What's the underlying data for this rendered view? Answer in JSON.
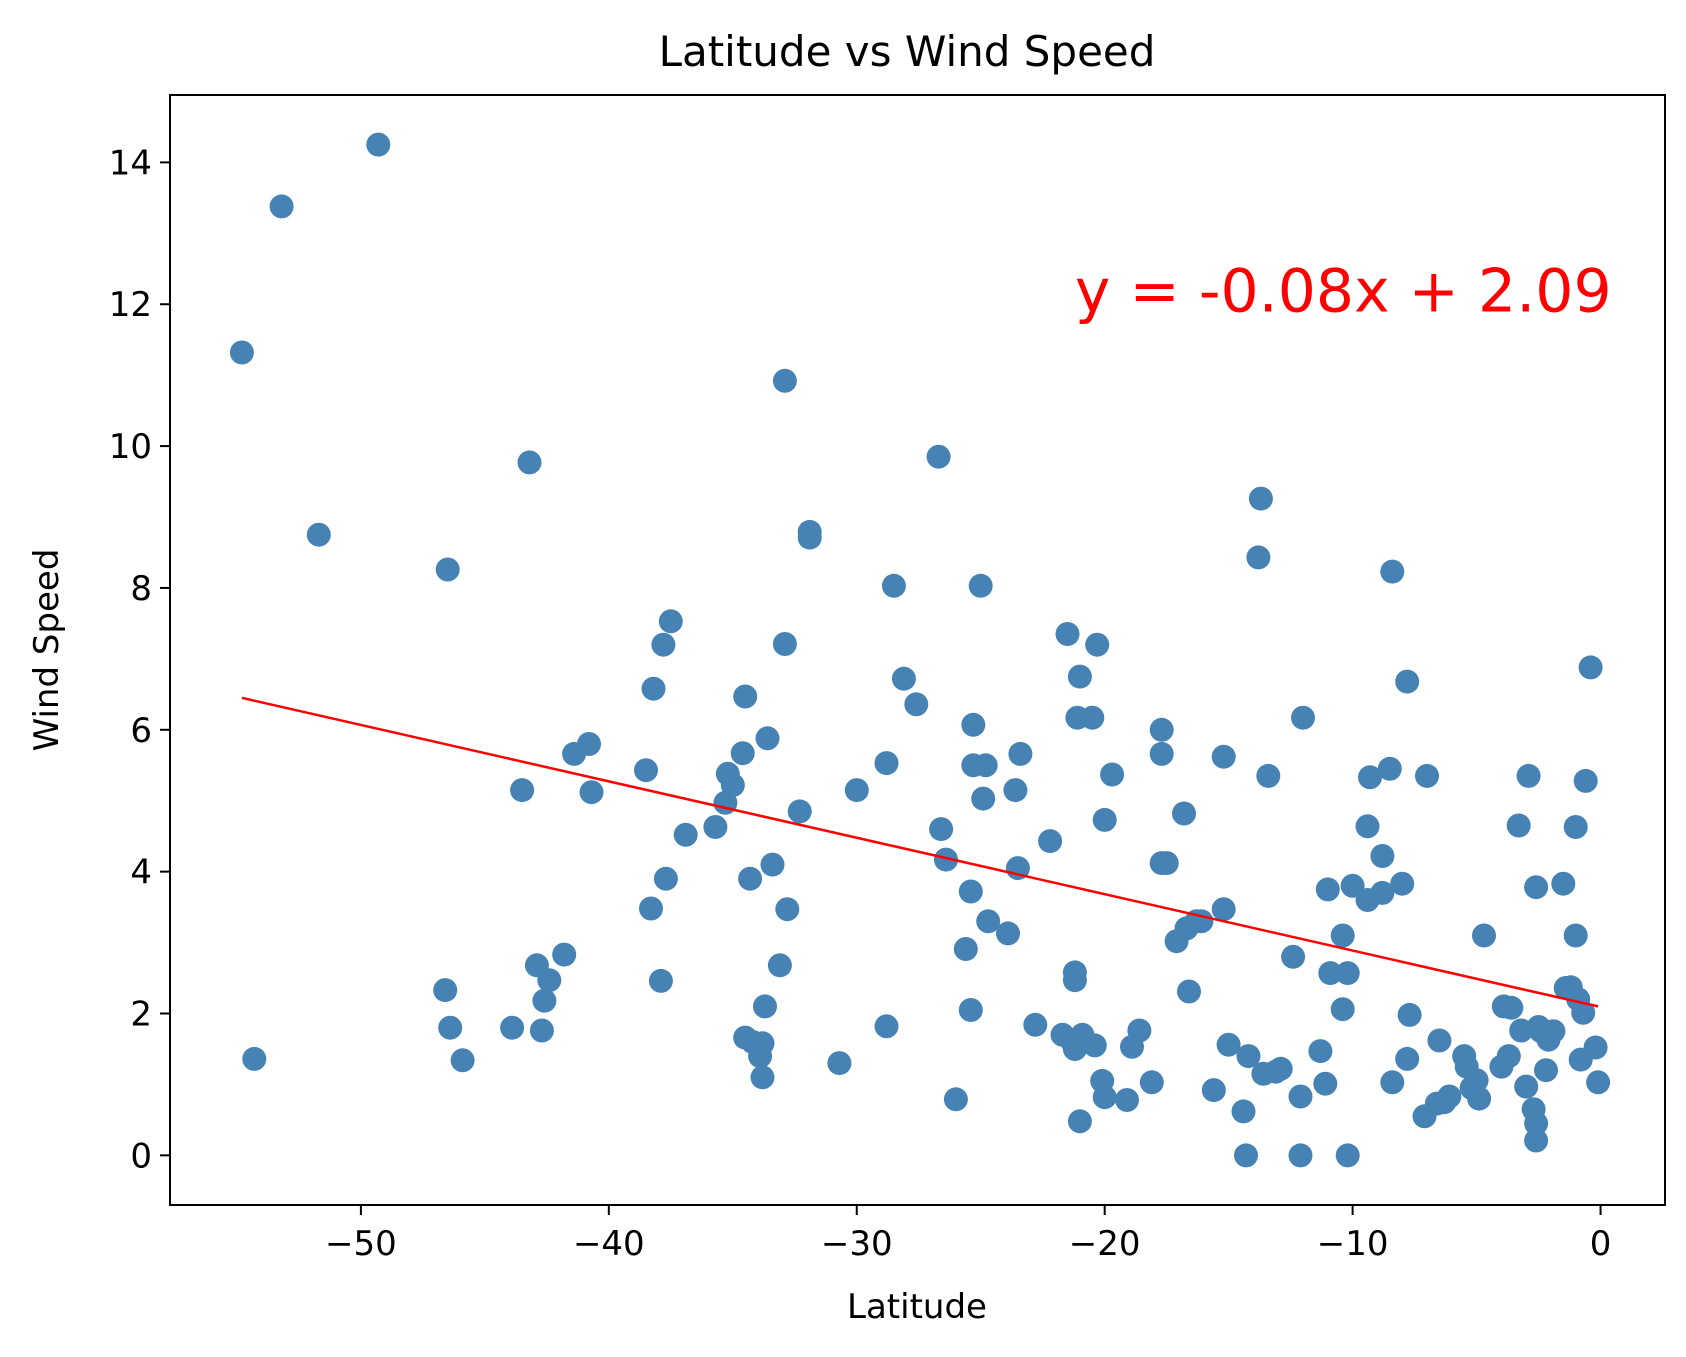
{
  "chart_data": {
    "type": "scatter",
    "title": "Latitude vs Wind Speed",
    "xlabel": "Latitude",
    "ylabel": "Wind Speed",
    "xlim": [
      -57.7,
      2.6
    ],
    "ylim": [
      -0.7,
      14.95
    ],
    "xticks": [
      -50,
      -40,
      -30,
      -20,
      -10,
      0
    ],
    "xtick_labels": [
      "−50",
      "−40",
      "−30",
      "−20",
      "−10",
      "0"
    ],
    "yticks": [
      0,
      2,
      4,
      6,
      8,
      10,
      12,
      14
    ],
    "ytick_labels": [
      "0",
      "2",
      "4",
      "6",
      "8",
      "10",
      "12",
      "14"
    ],
    "grid": false,
    "colors": {
      "points": "#4682b4",
      "line": "#ff0000",
      "annotation": "#ff0000"
    },
    "regression": {
      "equation": "y = -0.08x + 2.09",
      "x_start": -54.8,
      "y_start": 6.45,
      "x_end": -0.1,
      "y_end": 2.1,
      "label_at": [
        -21.2,
        11.9
      ]
    },
    "points": [
      [
        -54.8,
        11.32
      ],
      [
        -54.3,
        1.36
      ],
      [
        -53.2,
        13.38
      ],
      [
        -51.7,
        8.75
      ],
      [
        -49.3,
        14.25
      ],
      [
        -46.6,
        2.33
      ],
      [
        -46.5,
        8.26
      ],
      [
        -46.4,
        1.8
      ],
      [
        -45.9,
        1.34
      ],
      [
        -43.9,
        1.8
      ],
      [
        -43.5,
        5.15
      ],
      [
        -43.2,
        9.77
      ],
      [
        -42.9,
        2.68
      ],
      [
        -42.7,
        1.76
      ],
      [
        -42.6,
        2.18
      ],
      [
        -42.4,
        2.47
      ],
      [
        -41.8,
        2.83
      ],
      [
        -41.4,
        5.66
      ],
      [
        -40.8,
        5.8
      ],
      [
        -40.7,
        5.12
      ],
      [
        -38.5,
        5.43
      ],
      [
        -38.3,
        3.48
      ],
      [
        -38.2,
        6.58
      ],
      [
        -37.9,
        2.46
      ],
      [
        -37.8,
        7.2
      ],
      [
        -37.7,
        3.9
      ],
      [
        -37.5,
        7.53
      ],
      [
        -36.9,
        4.52
      ],
      [
        -35.7,
        4.63
      ],
      [
        -35.3,
        4.97
      ],
      [
        -35.2,
        5.38
      ],
      [
        -35.0,
        5.22
      ],
      [
        -34.6,
        5.67
      ],
      [
        -34.5,
        6.47
      ],
      [
        -34.5,
        1.66
      ],
      [
        -34.3,
        3.9
      ],
      [
        -34.2,
        1.6
      ],
      [
        -33.9,
        1.4
      ],
      [
        -33.8,
        1.58
      ],
      [
        -33.8,
        1.1
      ],
      [
        -33.7,
        2.1
      ],
      [
        -33.6,
        5.88
      ],
      [
        -33.4,
        4.1
      ],
      [
        -33.1,
        2.68
      ],
      [
        -32.9,
        7.21
      ],
      [
        -32.8,
        3.47
      ],
      [
        -32.9,
        10.92
      ],
      [
        -32.3,
        4.85
      ],
      [
        -31.9,
        8.79
      ],
      [
        -31.9,
        8.71
      ],
      [
        -30.7,
        1.3
      ],
      [
        -30.0,
        5.15
      ],
      [
        -28.8,
        5.53
      ],
      [
        -28.8,
        1.82
      ],
      [
        -28.5,
        8.03
      ],
      [
        -28.1,
        6.72
      ],
      [
        -27.6,
        6.36
      ],
      [
        -26.7,
        9.85
      ],
      [
        -26.6,
        4.6
      ],
      [
        -26.4,
        4.17
      ],
      [
        -26.0,
        0.79
      ],
      [
        -25.6,
        2.91
      ],
      [
        -25.4,
        3.72
      ],
      [
        -25.4,
        2.05
      ],
      [
        -25.3,
        5.5
      ],
      [
        -25.3,
        6.07
      ],
      [
        -25.0,
        8.03
      ],
      [
        -24.9,
        5.03
      ],
      [
        -24.8,
        5.5
      ],
      [
        -24.7,
        3.3
      ],
      [
        -23.9,
        3.13
      ],
      [
        -23.6,
        5.15
      ],
      [
        -23.5,
        4.05
      ],
      [
        -23.4,
        5.66
      ],
      [
        -22.8,
        1.84
      ],
      [
        -22.2,
        4.43
      ],
      [
        -21.7,
        1.7
      ],
      [
        -21.5,
        7.35
      ],
      [
        -21.3,
        1.6
      ],
      [
        -21.2,
        1.5
      ],
      [
        -21.2,
        2.58
      ],
      [
        -21.2,
        2.47
      ],
      [
        -21.1,
        6.17
      ],
      [
        -21.0,
        6.75
      ],
      [
        -21.0,
        0.48
      ],
      [
        -20.9,
        1.7
      ],
      [
        -20.5,
        6.17
      ],
      [
        -20.4,
        1.55
      ],
      [
        -20.3,
        7.2
      ],
      [
        -20.1,
        1.05
      ],
      [
        -20.0,
        0.82
      ],
      [
        -20.0,
        4.73
      ],
      [
        -19.7,
        5.37
      ],
      [
        -19.1,
        0.78
      ],
      [
        -18.9,
        1.53
      ],
      [
        -18.6,
        1.76
      ],
      [
        -18.1,
        1.03
      ],
      [
        -17.7,
        4.12
      ],
      [
        -17.7,
        5.66
      ],
      [
        -17.7,
        6.0
      ],
      [
        -17.5,
        4.12
      ],
      [
        -17.1,
        3.02
      ],
      [
        -16.8,
        4.82
      ],
      [
        -16.7,
        3.2
      ],
      [
        -16.6,
        2.31
      ],
      [
        -16.3,
        3.3
      ],
      [
        -16.1,
        3.3
      ],
      [
        -15.6,
        0.92
      ],
      [
        -15.2,
        3.47
      ],
      [
        -15.2,
        5.62
      ],
      [
        -15.0,
        1.56
      ],
      [
        -14.4,
        0.62
      ],
      [
        -14.3,
        0.0
      ],
      [
        -14.2,
        1.4
      ],
      [
        -13.7,
        9.26
      ],
      [
        -13.8,
        8.43
      ],
      [
        -13.6,
        1.15
      ],
      [
        -13.4,
        5.35
      ],
      [
        -13.1,
        1.18
      ],
      [
        -12.9,
        1.22
      ],
      [
        -12.4,
        2.8
      ],
      [
        -12.1,
        0.0
      ],
      [
        -12.1,
        0.83
      ],
      [
        -12.0,
        6.17
      ],
      [
        -11.3,
        1.47
      ],
      [
        -11.1,
        1.01
      ],
      [
        -11.0,
        3.75
      ],
      [
        -10.9,
        2.57
      ],
      [
        -10.4,
        3.1
      ],
      [
        -10.4,
        2.06
      ],
      [
        -10.2,
        0.0
      ],
      [
        -10.2,
        2.57
      ],
      [
        -10.0,
        3.8
      ],
      [
        -9.4,
        3.6
      ],
      [
        -9.4,
        4.64
      ],
      [
        -9.3,
        5.33
      ],
      [
        -8.8,
        4.22
      ],
      [
        -8.8,
        3.7
      ],
      [
        -8.5,
        5.45
      ],
      [
        -8.4,
        1.03
      ],
      [
        -8.4,
        8.23
      ],
      [
        -8.0,
        3.83
      ],
      [
        -7.8,
        6.68
      ],
      [
        -7.8,
        1.36
      ],
      [
        -7.7,
        1.98
      ],
      [
        -7.0,
        5.35
      ],
      [
        -7.1,
        0.55
      ],
      [
        -6.6,
        0.73
      ],
      [
        -6.5,
        1.62
      ],
      [
        -6.3,
        0.75
      ],
      [
        -6.1,
        0.83
      ],
      [
        -5.5,
        1.4
      ],
      [
        -5.4,
        1.25
      ],
      [
        -5.2,
        0.95
      ],
      [
        -5.0,
        1.06
      ],
      [
        -4.9,
        0.8
      ],
      [
        -4.7,
        3.1
      ],
      [
        -4.0,
        1.25
      ],
      [
        -3.9,
        2.1
      ],
      [
        -3.7,
        1.4
      ],
      [
        -3.6,
        2.08
      ],
      [
        -3.3,
        4.65
      ],
      [
        -3.2,
        1.76
      ],
      [
        -3.0,
        0.97
      ],
      [
        -2.9,
        5.35
      ],
      [
        -2.7,
        0.65
      ],
      [
        -2.6,
        3.78
      ],
      [
        -2.6,
        0.45
      ],
      [
        -2.6,
        0.21
      ],
      [
        -2.5,
        1.81
      ],
      [
        -2.4,
        1.75
      ],
      [
        -2.2,
        1.2
      ],
      [
        -2.1,
        1.63
      ],
      [
        -1.9,
        1.75
      ],
      [
        -1.5,
        3.83
      ],
      [
        -1.4,
        2.36
      ],
      [
        -1.2,
        2.37
      ],
      [
        -1.0,
        3.1
      ],
      [
        -1.0,
        4.63
      ],
      [
        -0.9,
        2.2
      ],
      [
        -0.8,
        1.35
      ],
      [
        -0.7,
        2.01
      ],
      [
        -0.6,
        5.28
      ],
      [
        -0.4,
        6.88
      ],
      [
        -0.2,
        1.52
      ],
      [
        -0.1,
        1.03
      ]
    ]
  }
}
